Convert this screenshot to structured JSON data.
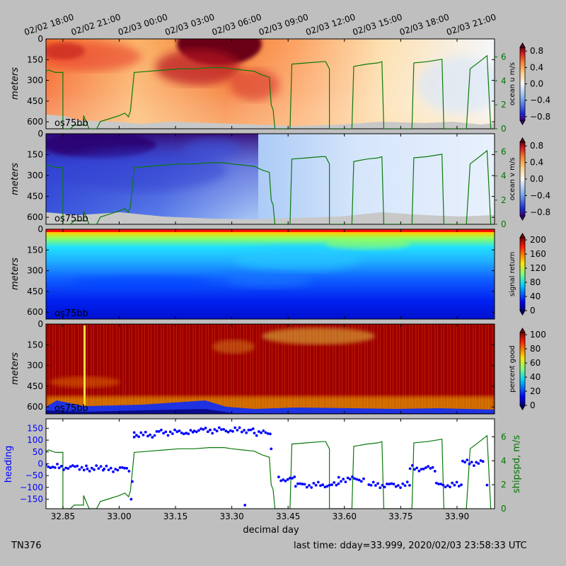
{
  "figure": {
    "background": "#bfbfbf",
    "cruise_label": "TN376",
    "last_time_label": "last time: dday=33.999,  2020/02/03 23:58:33 UTC"
  },
  "top_time_labels": [
    "02/02 18:00",
    "02/02 21:00",
    "02/03 00:00",
    "02/03 03:00",
    "02/03 06:00",
    "02/03 09:00",
    "02/03 12:00",
    "02/03 15:00",
    "02/03 18:00",
    "02/03 21:00"
  ],
  "chart_data": [
    {
      "type": "heatmap",
      "name": "ocean-u",
      "ylabel": "meters",
      "colorbar_label": "ocean u m/s",
      "colorbar_ticks": [
        "0.8",
        "0.4",
        "0.0",
        "−0.4",
        "−0.8"
      ],
      "yticks": [
        "0",
        "150",
        "300",
        "450",
        "600"
      ],
      "right_ticks": [
        "0",
        "2",
        "4",
        "6"
      ],
      "instrument_label": "os75bb",
      "colormap": "RdYlBu_r",
      "xlim": [
        32.8,
        34.0
      ],
      "ylim": [
        650,
        0
      ],
      "shipspd_overlay": true
    },
    {
      "type": "heatmap",
      "name": "ocean-v",
      "ylabel": "meters",
      "colorbar_label": "ocean v m/s",
      "colorbar_ticks": [
        "0.8",
        "0.4",
        "0.0",
        "−0.4",
        "−0.8"
      ],
      "yticks": [
        "0",
        "150",
        "300",
        "450",
        "600"
      ],
      "right_ticks": [
        "0",
        "2",
        "4",
        "6"
      ],
      "instrument_label": "os75bb",
      "colormap": "RdYlBu_r",
      "xlim": [
        32.8,
        34.0
      ],
      "ylim": [
        650,
        0
      ],
      "shipspd_overlay": true
    },
    {
      "type": "heatmap",
      "name": "signal-return",
      "ylabel": "meters",
      "colorbar_label": "signal return",
      "colorbar_ticks": [
        "200",
        "160",
        "120",
        "80",
        "40",
        "0"
      ],
      "yticks": [
        "0",
        "150",
        "300",
        "450",
        "600"
      ],
      "instrument_label": "os75bb",
      "colormap": "jet",
      "xlim": [
        32.8,
        34.0
      ],
      "ylim": [
        650,
        0
      ]
    },
    {
      "type": "heatmap",
      "name": "percent-good",
      "ylabel": "meters",
      "colorbar_label": "percent good",
      "colorbar_ticks": [
        "100",
        "80",
        "60",
        "40",
        "20",
        "0"
      ],
      "yticks": [
        "0",
        "150",
        "300",
        "450",
        "600"
      ],
      "instrument_label": "os75bb",
      "colormap": "jet",
      "xlim": [
        32.8,
        34.0
      ],
      "ylim": [
        650,
        0
      ]
    },
    {
      "type": "scatter",
      "name": "heading-shipspd",
      "xlabel": "decimal day",
      "ylabel_left": "heading",
      "ylabel_right": "shipspd, m/s",
      "left_color": "#0000ff",
      "right_color": "#007700",
      "xticks": [
        "32.85",
        "33.00",
        "33.15",
        "33.30",
        "33.45",
        "33.60",
        "33.75",
        "33.90"
      ],
      "xtick_values": [
        32.85,
        33.0,
        33.15,
        33.3,
        33.45,
        33.6,
        33.75,
        33.9
      ],
      "yticks_left": [
        "150",
        "100",
        "50",
        "0",
        "−50",
        "−100",
        "−150"
      ],
      "yticks_right": [
        "6",
        "4",
        "2",
        "0"
      ],
      "xlim": [
        32.805,
        34.0
      ],
      "ylim_left": [
        -190,
        190
      ],
      "ylim_right": [
        0,
        7.5
      ],
      "heading_segments": [
        {
          "x0": 32.805,
          "x1": 32.84,
          "y": -10
        },
        {
          "x0": 32.84,
          "x1": 32.915,
          "y": -15
        },
        {
          "x0": 32.915,
          "x1": 32.96,
          "y": -20
        },
        {
          "x0": 32.96,
          "x1": 33.03,
          "y": -22
        },
        {
          "x0": 33.04,
          "x1": 33.1,
          "y": 122
        },
        {
          "x0": 33.1,
          "x1": 33.2,
          "y": 133
        },
        {
          "x0": 33.2,
          "x1": 33.36,
          "y": 142
        },
        {
          "x0": 33.36,
          "x1": 33.405,
          "y": 130
        },
        {
          "x0": 33.425,
          "x1": 33.47,
          "y": -65
        },
        {
          "x0": 33.47,
          "x1": 33.585,
          "y": -90
        },
        {
          "x0": 33.585,
          "x1": 33.655,
          "y": -65
        },
        {
          "x0": 33.665,
          "x1": 33.775,
          "y": -90
        },
        {
          "x0": 33.775,
          "x1": 33.845,
          "y": -20
        },
        {
          "x0": 33.845,
          "x1": 33.915,
          "y": -90
        },
        {
          "x0": 33.915,
          "x1": 33.975,
          "y": 5
        }
      ],
      "heading_outliers": [
        {
          "x": 33.032,
          "y": -150
        },
        {
          "x": 33.035,
          "y": -75
        },
        {
          "x": 33.04,
          "y": 132
        },
        {
          "x": 33.335,
          "y": -175
        },
        {
          "x": 33.405,
          "y": 63
        },
        {
          "x": 33.98,
          "y": -90
        }
      ],
      "shipspd": [
        [
          32.805,
          4.8
        ],
        [
          32.812,
          4.9
        ],
        [
          32.83,
          4.7
        ],
        [
          32.85,
          4.7
        ],
        [
          32.85,
          0.0
        ],
        [
          32.87,
          0.0
        ],
        [
          32.88,
          0.3
        ],
        [
          32.905,
          0.3
        ],
        [
          32.905,
          1.1
        ],
        [
          32.92,
          0.0
        ],
        [
          32.94,
          0.0
        ],
        [
          32.95,
          0.6
        ],
        [
          32.97,
          0.8
        ],
        [
          33.0,
          1.1
        ],
        [
          33.015,
          1.3
        ],
        [
          33.025,
          1.0
        ],
        [
          33.03,
          1.5
        ],
        [
          33.04,
          4.7
        ],
        [
          33.08,
          4.8
        ],
        [
          33.12,
          4.9
        ],
        [
          33.16,
          5.0
        ],
        [
          33.2,
          5.0
        ],
        [
          33.24,
          5.1
        ],
        [
          33.28,
          5.1
        ],
        [
          33.3,
          5.0
        ],
        [
          33.33,
          4.9
        ],
        [
          33.36,
          4.8
        ],
        [
          33.38,
          4.5
        ],
        [
          33.4,
          4.3
        ],
        [
          33.405,
          2.0
        ],
        [
          33.41,
          1.6
        ],
        [
          33.415,
          0.0
        ],
        [
          33.455,
          0.0
        ],
        [
          33.46,
          5.4
        ],
        [
          33.5,
          5.5
        ],
        [
          33.54,
          5.6
        ],
        [
          33.55,
          5.6
        ],
        [
          33.56,
          5.0
        ],
        [
          33.56,
          0.0
        ],
        [
          33.62,
          0.0
        ],
        [
          33.625,
          5.2
        ],
        [
          33.66,
          5.4
        ],
        [
          33.69,
          5.5
        ],
        [
          33.7,
          5.6
        ],
        [
          33.705,
          0.0
        ],
        [
          33.78,
          0.0
        ],
        [
          33.785,
          5.5
        ],
        [
          33.82,
          5.6
        ],
        [
          33.86,
          5.8
        ],
        [
          33.865,
          0.0
        ],
        [
          33.925,
          0.0
        ],
        [
          33.935,
          5.0
        ],
        [
          33.96,
          5.6
        ],
        [
          33.98,
          6.1
        ],
        [
          33.99,
          0.0
        ]
      ]
    }
  ]
}
